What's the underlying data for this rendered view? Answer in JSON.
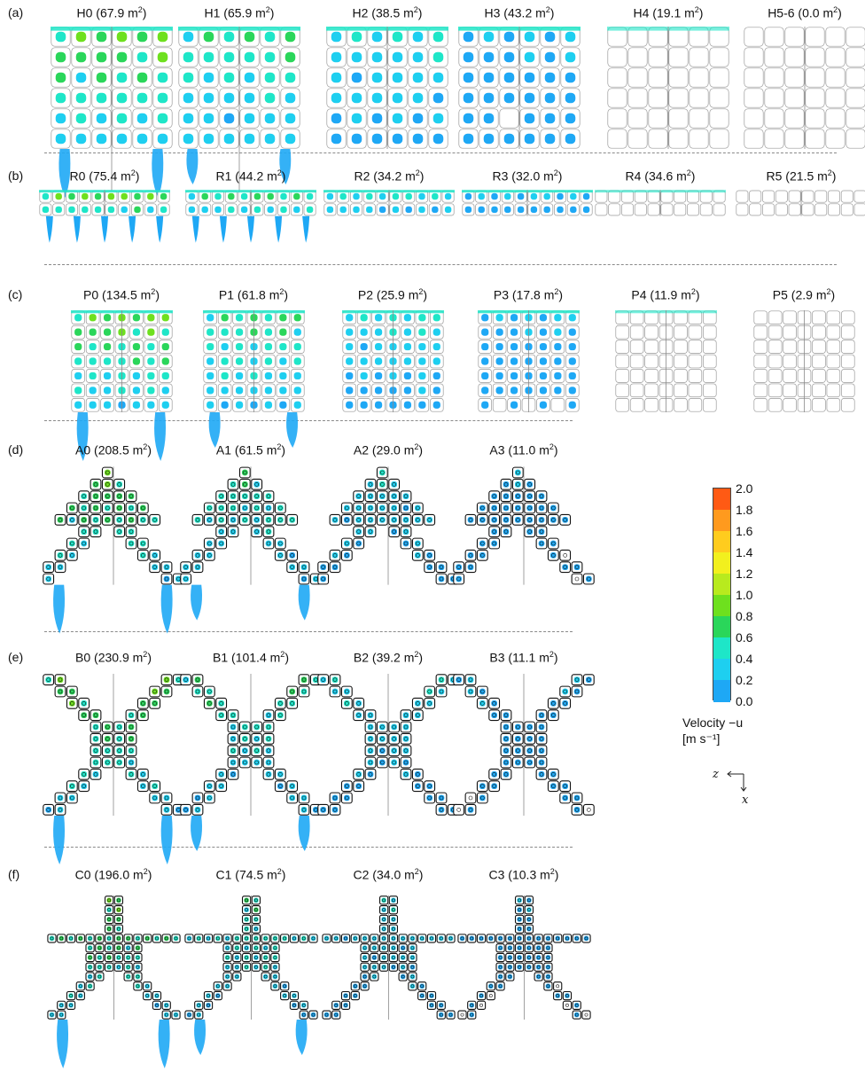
{
  "rows": [
    {
      "id": "a",
      "label": "(a)",
      "panels": [
        {
          "name": "H0",
          "area": "67.9",
          "shape": "H",
          "level": 0
        },
        {
          "name": "H1",
          "area": "65.9",
          "shape": "H",
          "level": 1
        },
        {
          "name": "H2",
          "area": "38.5",
          "shape": "H",
          "level": 2
        },
        {
          "name": "H3",
          "area": "43.2",
          "shape": "H",
          "level": 3
        },
        {
          "name": "H4",
          "area": "19.1",
          "shape": "H",
          "level": 4
        },
        {
          "name": "H5-6",
          "area": "0.0",
          "shape": "H",
          "level": 5
        }
      ]
    },
    {
      "id": "b",
      "label": "(b)",
      "panels": [
        {
          "name": "R0",
          "area": "75.4",
          "shape": "R",
          "level": 0
        },
        {
          "name": "R1",
          "area": "44.2",
          "shape": "R",
          "level": 1
        },
        {
          "name": "R2",
          "area": "34.2",
          "shape": "R",
          "level": 2
        },
        {
          "name": "R3",
          "area": "32.0",
          "shape": "R",
          "level": 3
        },
        {
          "name": "R4",
          "area": "34.6",
          "shape": "R",
          "level": 4
        },
        {
          "name": "R5",
          "area": "21.5",
          "shape": "R",
          "level": 5
        }
      ]
    },
    {
      "id": "c",
      "label": "(c)",
      "panels": [
        {
          "name": "P0",
          "area": "134.5",
          "shape": "P",
          "level": 0
        },
        {
          "name": "P1",
          "area": "61.8",
          "shape": "P",
          "level": 1
        },
        {
          "name": "P2",
          "area": "25.9",
          "shape": "P",
          "level": 2
        },
        {
          "name": "P3",
          "area": "17.8",
          "shape": "P",
          "level": 3
        },
        {
          "name": "P4",
          "area": "11.9",
          "shape": "P",
          "level": 4
        },
        {
          "name": "P5",
          "area": "2.9",
          "shape": "P",
          "level": 5
        }
      ]
    },
    {
      "id": "d",
      "label": "(d)",
      "panels": [
        {
          "name": "A0",
          "area": "208.5",
          "shape": "A",
          "level": 0
        },
        {
          "name": "A1",
          "area": "61.5",
          "shape": "A",
          "level": 1
        },
        {
          "name": "A2",
          "area": "29.0",
          "shape": "A",
          "level": 2
        },
        {
          "name": "A3",
          "area": "11.0",
          "shape": "A",
          "level": 3
        }
      ]
    },
    {
      "id": "e",
      "label": "(e)",
      "panels": [
        {
          "name": "B0",
          "area": "230.9",
          "shape": "B",
          "level": 0
        },
        {
          "name": "B1",
          "area": "101.4",
          "shape": "B",
          "level": 1
        },
        {
          "name": "B2",
          "area": "39.2",
          "shape": "B",
          "level": 2
        },
        {
          "name": "B3",
          "area": "11.1",
          "shape": "B",
          "level": 3
        }
      ]
    },
    {
      "id": "f",
      "label": "(f)",
      "panels": [
        {
          "name": "C0",
          "area": "196.0",
          "shape": "C",
          "level": 0
        },
        {
          "name": "C1",
          "area": "74.5",
          "shape": "C",
          "level": 1
        },
        {
          "name": "C2",
          "area": "34.0",
          "shape": "C",
          "level": 2
        },
        {
          "name": "C3",
          "area": "10.3",
          "shape": "C",
          "level": 3
        }
      ]
    }
  ],
  "area_unit": "m",
  "area_unit_exp": "2",
  "colorbar": {
    "ticks": [
      "2.0",
      "1.8",
      "1.6",
      "1.4",
      "1.2",
      "1.0",
      "0.8",
      "0.6",
      "0.4",
      "0.2",
      "0.0"
    ],
    "colors": [
      "#ff5a14",
      "#ff9a1e",
      "#ffcc1e",
      "#f2f01e",
      "#b8ea1e",
      "#6ee01e",
      "#2ad65a",
      "#1ee6c8",
      "#1ecff0",
      "#1ea8f5",
      "#1e62ee"
    ],
    "label_line1": "Velocity −u",
    "label_line2": "[m s⁻¹]"
  },
  "axes": {
    "z": "z",
    "x": "x"
  }
}
